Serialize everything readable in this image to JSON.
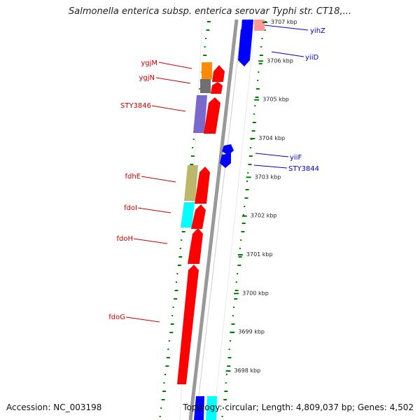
{
  "header": {
    "title": "Salmonella enterica subsp. enterica serovar Typhi str. CT18,..."
  },
  "footer": {
    "accession": "Accession: NC_003198",
    "summary": "Topology: circular; Length: 4,809,037 bp; Genes: 4,502"
  },
  "ruler": {
    "unit": "kbp",
    "ticks": [
      {
        "value": 3707,
        "label": "3707 kbp"
      },
      {
        "value": 3706,
        "label": "3706 kbp"
      },
      {
        "value": 3705,
        "label": "3705 kbp"
      },
      {
        "value": 3704,
        "label": "3704 kbp"
      },
      {
        "value": 3703,
        "label": "3703 kbp"
      },
      {
        "value": 3702,
        "label": "3702 kbp"
      },
      {
        "value": 3701,
        "label": "3701 kbp"
      },
      {
        "value": 3700,
        "label": "3700 kbp"
      },
      {
        "value": 3699,
        "label": "3699 kbp"
      },
      {
        "value": 3698,
        "label": "3698 kbp"
      }
    ]
  },
  "genes_reverse": [
    {
      "name": "ygjM",
      "color": "#ff0000"
    },
    {
      "name": "ygjN",
      "color": "#ff0000"
    },
    {
      "name": "STY3846",
      "color": "#ff0000"
    },
    {
      "name": "fdhE",
      "color": "#ff0000"
    },
    {
      "name": "fdoI",
      "color": "#ff0000"
    },
    {
      "name": "fdoH",
      "color": "#ff0000"
    },
    {
      "name": "fdoG",
      "color": "#ff0000"
    }
  ],
  "genes_forward": [
    {
      "name": "yihZ",
      "color": "#0000ff"
    },
    {
      "name": "yiiD",
      "color": "#0000ff"
    },
    {
      "name": "yiiF",
      "color": "#0000ff"
    },
    {
      "name": "STY3844",
      "color": "#0000ff"
    }
  ],
  "cog_colors": {
    "orange": "#ff8c00",
    "dark_gray": "#707070",
    "purple": "#7b68cc",
    "khaki": "#bdb76b",
    "cyan": "#00ffff",
    "pink": "#ff9999",
    "blue": "#0000ff",
    "red": "#ff0000",
    "backbone": "#888888",
    "tick_green": "#008000"
  }
}
